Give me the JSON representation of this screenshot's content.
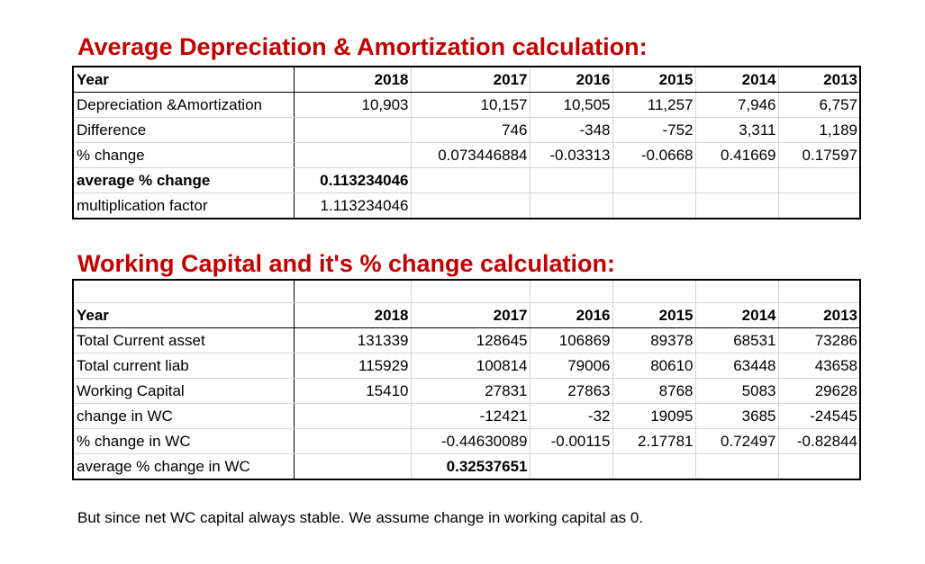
{
  "da_section": {
    "title": "Average Depreciation & Amortization calculation:",
    "header": [
      "Year",
      "2018",
      "2017",
      "2016",
      "2015",
      "2014",
      "2013"
    ],
    "rows": [
      {
        "label": "Depreciation &Amortization",
        "cells": [
          "10,903",
          "10,157",
          "10,505",
          "11,257",
          "7,946",
          "6,757"
        ]
      },
      {
        "label": "Difference",
        "cells": [
          "",
          "746",
          "-348",
          "-752",
          "3,311",
          "1,189"
        ]
      },
      {
        "label": "% change",
        "cells": [
          "",
          "0.073446884",
          "-0.03313",
          "-0.0668",
          "0.41669",
          "0.17597"
        ]
      },
      {
        "label": "average % change",
        "cells": [
          "0.113234046",
          "",
          "",
          "",
          "",
          ""
        ]
      },
      {
        "label": "multiplication factor",
        "cells": [
          "1.113234046",
          "",
          "",
          "",
          "",
          ""
        ]
      }
    ]
  },
  "wc_section": {
    "title": "Working Capital and it's % change calculation:",
    "header": [
      "Year",
      "2018",
      "2017",
      "2016",
      "2015",
      "2014",
      "2013"
    ],
    "rows": [
      {
        "label": "Total Current asset",
        "cells": [
          "131339",
          "128645",
          "106869",
          "89378",
          "68531",
          "73286"
        ]
      },
      {
        "label": "Total current liab",
        "cells": [
          "115929",
          "100814",
          "79006",
          "80610",
          "63448",
          "43658"
        ]
      },
      {
        "label": "Working Capital",
        "cells": [
          "15410",
          "27831",
          "27863",
          "8768",
          "5083",
          "29628"
        ]
      },
      {
        "label": "change in WC",
        "cells": [
          "",
          "-12421",
          "-32",
          "19095",
          "3685",
          "-24545"
        ]
      },
      {
        "label": "% change in WC",
        "cells": [
          "",
          "-0.44630089",
          "-0.00115",
          "2.17781",
          "0.72497",
          "-0.82844"
        ]
      },
      {
        "label": "average % change in WC",
        "cells": [
          "",
          "0.32537651",
          "",
          "",
          "",
          ""
        ]
      }
    ]
  },
  "note": "But since net WC capital always stable. We assume change in working capital as 0."
}
